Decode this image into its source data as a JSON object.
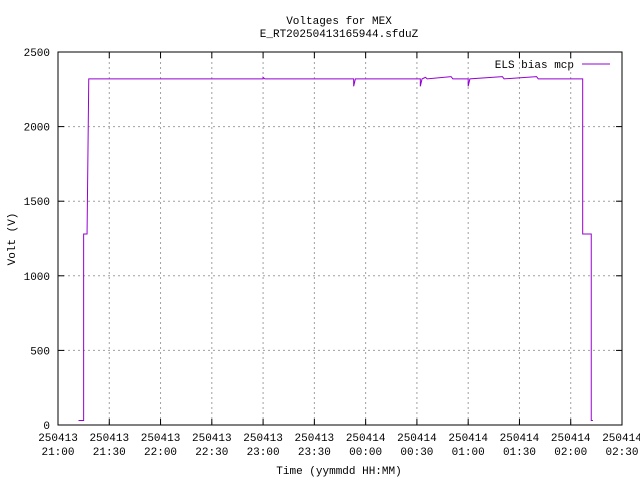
{
  "chart_data": {
    "type": "line",
    "title": "Voltages for MEX",
    "subtitle": "E_RT20250413165944.sfduZ",
    "x_label": "Time (yymmdd HH:MM)",
    "y_label": "Volt (V)",
    "xlim": [
      "2025-04-13T21:00",
      "2025-04-14T02:30"
    ],
    "xticks": [
      {
        "value": "2025-04-13T21:00",
        "label": [
          "250413",
          "21:00"
        ]
      },
      {
        "value": "2025-04-13T21:30",
        "label": [
          "250413",
          "21:30"
        ]
      },
      {
        "value": "2025-04-13T22:00",
        "label": [
          "250413",
          "22:00"
        ]
      },
      {
        "value": "2025-04-13T22:30",
        "label": [
          "250413",
          "22:30"
        ]
      },
      {
        "value": "2025-04-13T23:00",
        "label": [
          "250413",
          "23:00"
        ]
      },
      {
        "value": "2025-04-13T23:30",
        "label": [
          "250413",
          "23:30"
        ]
      },
      {
        "value": "2025-04-14T00:00",
        "label": [
          "250414",
          "00:00"
        ]
      },
      {
        "value": "2025-04-14T00:30",
        "label": [
          "250414",
          "00:30"
        ]
      },
      {
        "value": "2025-04-14T01:00",
        "label": [
          "250414",
          "01:00"
        ]
      },
      {
        "value": "2025-04-14T01:30",
        "label": [
          "250414",
          "01:30"
        ]
      },
      {
        "value": "2025-04-14T02:00",
        "label": [
          "250414",
          "02:00"
        ]
      },
      {
        "value": "2025-04-14T02:30",
        "label": [
          "250414",
          "02:30"
        ]
      }
    ],
    "ylim": [
      0,
      2500
    ],
    "yticks": [
      0,
      500,
      1000,
      1500,
      2000,
      2500
    ],
    "grid": true,
    "legend": "top-right",
    "x": [
      "2025-04-13T21:12",
      "2025-04-13T21:15",
      "2025-04-13T21:15",
      "2025-04-13T21:17",
      "2025-04-13T21:18",
      "2025-04-13T23:00",
      "2025-04-13T23:00",
      "2025-04-13T23:01",
      "2025-04-13T23:53",
      "2025-04-13T23:53",
      "2025-04-13T23:54",
      "2025-04-14T00:32",
      "2025-04-14T00:32",
      "2025-04-14T00:33",
      "2025-04-14T00:35",
      "2025-04-14T00:36",
      "2025-04-14T00:50",
      "2025-04-14T00:51",
      "2025-04-14T01:00",
      "2025-04-14T01:00",
      "2025-04-14T01:01",
      "2025-04-14T01:20",
      "2025-04-14T01:21",
      "2025-04-14T01:40",
      "2025-04-14T01:41",
      "2025-04-14T02:07",
      "2025-04-14T02:07",
      "2025-04-14T02:12",
      "2025-04-14T02:12",
      "2025-04-14T02:13"
    ],
    "series": [
      {
        "name": "ELS bias mcp",
        "color": "#9400d3",
        "values": [
          30,
          30,
          1280,
          1280,
          2320,
          2320,
          2330,
          2320,
          2320,
          2270,
          2320,
          2320,
          2270,
          2320,
          2330,
          2320,
          2335,
          2320,
          2320,
          2270,
          2320,
          2335,
          2320,
          2335,
          2320,
          2320,
          1280,
          1280,
          30,
          30
        ]
      }
    ]
  }
}
